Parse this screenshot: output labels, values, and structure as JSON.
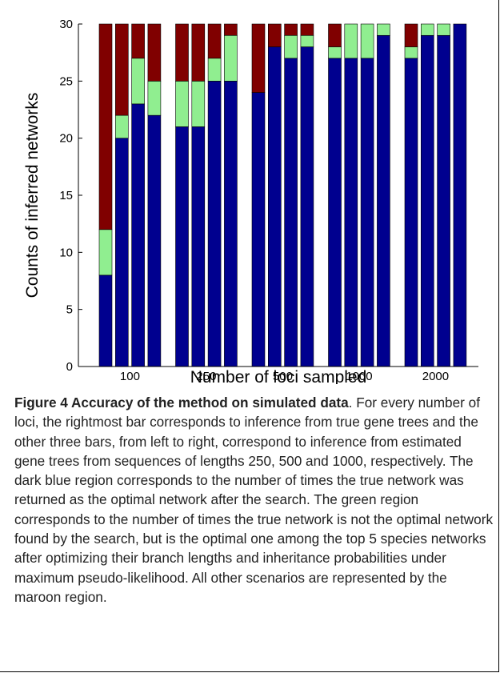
{
  "chart_data": {
    "type": "bar",
    "stacked": true,
    "xlabel": "Number of loci sampled",
    "ylabel": "Counts of inferred networks",
    "ylim": [
      0,
      30
    ],
    "yticks": [
      0,
      5,
      10,
      15,
      20,
      25,
      30
    ],
    "grid": false,
    "legend": "none",
    "groups": [
      "100",
      "250",
      "500",
      "1000",
      "2000"
    ],
    "bars_per_group": 4,
    "series": [
      {
        "color": "#00008f",
        "values": [
          8,
          20,
          23,
          22,
          21,
          21,
          25,
          25,
          24,
          28,
          27,
          28,
          27,
          27,
          27,
          29,
          27,
          29,
          29,
          30
        ]
      },
      {
        "color": "#90ee90",
        "values": [
          4,
          2,
          4,
          3,
          4,
          4,
          2,
          4,
          0,
          0,
          2,
          1,
          1,
          3,
          3,
          1,
          1,
          1,
          1,
          0
        ]
      },
      {
        "color": "#800000",
        "values": [
          18,
          8,
          3,
          5,
          5,
          5,
          3,
          1,
          6,
          2,
          1,
          1,
          2,
          0,
          0,
          0,
          2,
          0,
          0,
          0
        ]
      }
    ]
  },
  "caption": {
    "label": "Figure 4 Accuracy of the method on simulated data",
    "text": ". For every number of loci, the rightmost bar corresponds to inference from true gene trees and the other three bars, from left to right, correspond to inference from estimated gene trees from sequences of lengths 250, 500 and 1000, respectively. The dark blue region corresponds to the number of times the true network was returned as the optimal network after the search. The green region corresponds to the number of times the true network is not the optimal network found by the search, but is the optimal one among the top 5 species networks after optimizing their branch lengths and inheritance probabilities under maximum pseudo-likelihood. All other scenarios are represented by the maroon region."
  }
}
